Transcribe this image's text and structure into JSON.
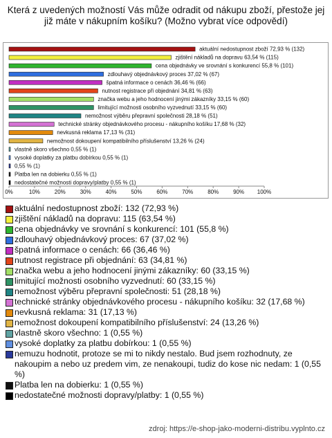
{
  "chart_data": {
    "type": "bar",
    "orientation": "horizontal",
    "title": "Která z uvedených možností Vás může odradit od nákupu zboží, přestože jej již máte v nákupním košíku? (Možno vybrat více odpovědí)",
    "categories": [
      "aktuální nedostupnost zboží",
      "zjištění nákladů na dopravu",
      "cena objednávky ve srovnání s konkurencí",
      "zdlouhavý objednávkový proces",
      "špatná informace o cenách",
      "nutnost registrace při objednání",
      "značka webu a jeho hodnocení jinými zákazníky",
      "limitující možnosti osobního vyzvednutí",
      "nemožnost výběru přepravní společnosti",
      "technické stránky objednávkového procesu - nákupního košíku",
      "nevkusná reklama",
      "nemožnost dokoupení kompatibilního příslušenství",
      "vlastně skoro všechno",
      "vysoké doplatky za platbu dobírkou",
      "nemuzu hodnotit, protoze se mi to nikdy nestalo. Bud jsem rozhodnuty, ze nakoupim a nebo uz predem vim, ze nenakoupi, tudiz do kose nic nedam",
      "Platba len na dobierku",
      "nedostatečné možnosti dopravy/platby"
    ],
    "values": [
      72.93,
      63.54,
      55.8,
      37.02,
      36.46,
      34.81,
      33.15,
      33.15,
      28.18,
      17.68,
      17.13,
      13.26,
      0.55,
      0.55,
      0.55,
      0.55,
      0.55
    ],
    "value_labels": [
      "aktuální nedostupnost zboží 72,93 % (132)",
      "zjištění nákladů na dopravu 63,54 % (115)",
      "cena objednávky ve srovnání s konkurencí 55,8 % (101)",
      "zdlouhavý objednávkový proces 37,02 % (67)",
      "špatná informace o cenách 36,46 % (66)",
      "nutnost registrace při objednání 34,81 % (63)",
      "značka webu a jeho hodnocení jinými zákazníky 33,15 % (60)",
      "limitující možnosti osobního vyzvednutí 33,15 % (60)",
      "nemožnost výběru přepravní společnosti 28,18 % (51)",
      "technické stránky objednávkového procesu - nákupního košíku 17,68 % (32)",
      "nevkusná reklama 17,13 % (31)",
      "nemožnost dokoupení kompatibilního příslušenství 13,26 % (24)",
      "vlastně skoro všechno 0,55 % (1)",
      "vysoké doplatky za platbu dobírkou 0,55 % (1)",
      "0,55 % (1)",
      "Platba len na dobierku 0,55 % (1)",
      "nedostatečné možnosti dopravy/platby 0,55 % (1)"
    ],
    "legend_labels": [
      "aktuální nedostupnost zboží: 132 (72,93 %)",
      "zjištění nákladů na dopravu: 115 (63,54 %)",
      "cena objednávky ve srovnání s konkurencí: 101 (55,8 %)",
      "zdlouhavý objednávkový proces: 67 (37,02 %)",
      "špatná informace o cenách: 66 (36,46 %)",
      "nutnost registrace při objednání: 63 (34,81 %)",
      "značka webu a jeho hodnocení jinými zákazníky: 60 (33,15 %)",
      "limitující možnosti osobního vyzvednutí: 60 (33,15 %)",
      "nemožnost výběru přepravní společnosti: 51 (28,18 %)",
      "technické stránky objednávkového procesu - nákupního košíku: 32 (17,68 %)",
      "nevkusná reklama: 31 (17,13 %)",
      "nemožnost dokoupení kompatibilního příslušenství: 24 (13,26 %)",
      "vlastně skoro všechno: 1 (0,55 %)",
      "vysoké doplatky za platbu dobírkou: 1 (0,55 %)",
      "nemuzu hodnotit, protoze se mi to nikdy nestalo. Bud jsem rozhodnuty, ze nakoupim a nebo uz predem vim, ze nenakoupi, tudiz do kose nic nedam: 1 (0,55 %)",
      "Platba len na dobierku: 1 (0,55 %)",
      "nedostatečné možnosti dopravy/platby: 1 (0,55 %)"
    ],
    "colors": [
      "#a51212",
      "#f2ef3c",
      "#2fb52f",
      "#2f6fe0",
      "#c22fc2",
      "#e2451a",
      "#a3e066",
      "#2f9466",
      "#1f8585",
      "#d472d4",
      "#e38a0c",
      "#e0b444",
      "#5fa3a3",
      "#5f8fe0",
      "#2a3a9c",
      "#111111",
      "#000000"
    ],
    "xlim": [
      0,
      100
    ],
    "xticks": [
      {
        "value": 0,
        "label": "0%"
      },
      {
        "value": 10,
        "label": "10%"
      },
      {
        "value": 20,
        "label": "20%"
      },
      {
        "value": 30,
        "label": "30%"
      },
      {
        "value": 40,
        "label": "40%"
      },
      {
        "value": 50,
        "label": "50%"
      },
      {
        "value": 60,
        "label": "60%"
      },
      {
        "value": 70,
        "label": "70%"
      },
      {
        "value": 80,
        "label": "80%"
      },
      {
        "value": 90,
        "label": "90%"
      },
      {
        "value": 100,
        "label": "100%"
      }
    ],
    "source": "zdroj: https://e-shop-jako-moderni-distribu.vyplnto.cz"
  }
}
